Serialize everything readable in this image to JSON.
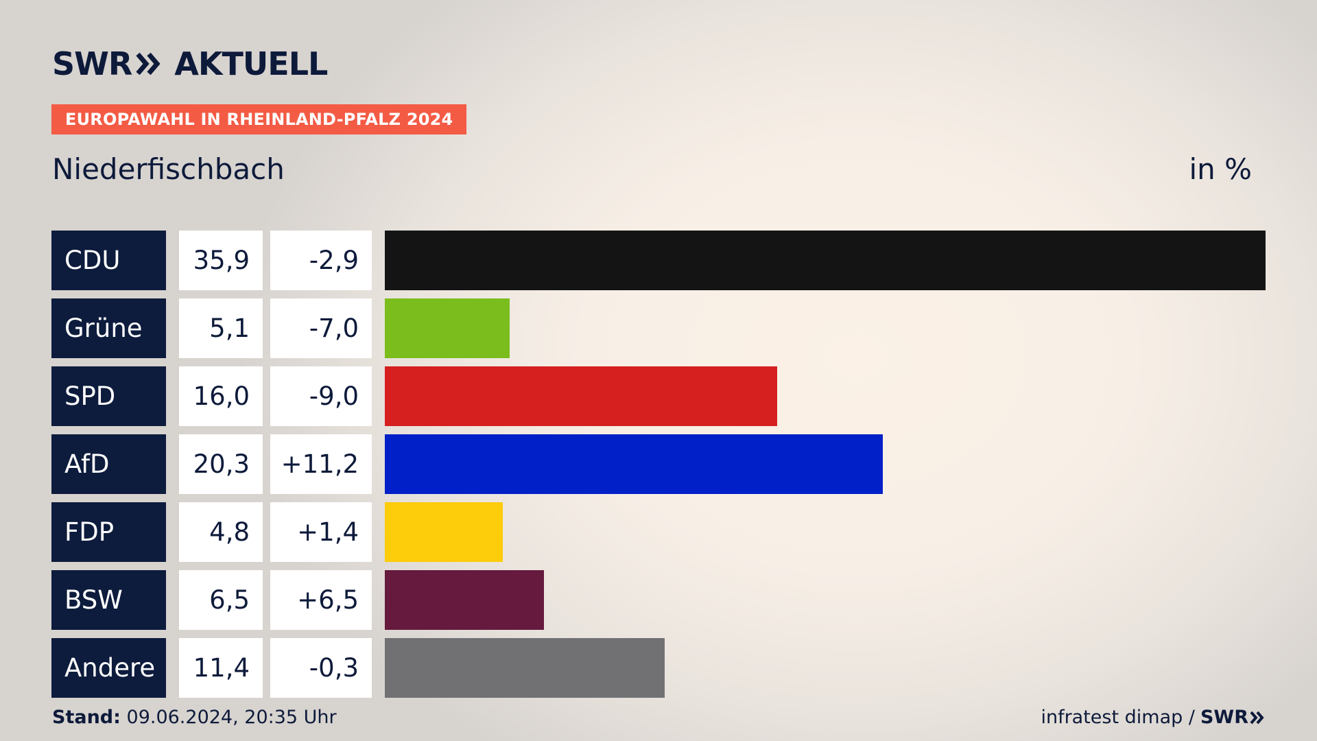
{
  "header": {
    "brand_swr": "SWR",
    "brand_aktuell": "AKTUELL",
    "badge": "EUROPAWAHL IN RHEINLAND-PFALZ 2024",
    "subtitle": "Niederfischbach",
    "unit": "in %"
  },
  "footer": {
    "stand_label": "Stand:",
    "stand_value": "09.06.2024, 20:35 Uhr",
    "source": "infratest dimap /",
    "source_brand": "SWR"
  },
  "chart_data": {
    "type": "bar",
    "orientation": "horizontal",
    "categories": [
      "CDU",
      "Grüne",
      "SPD",
      "AfD",
      "FDP",
      "BSW",
      "Andere"
    ],
    "values": [
      35.9,
      5.1,
      16.0,
      20.3,
      4.8,
      6.5,
      11.4
    ],
    "value_labels": [
      "35,9",
      "5,1",
      "16,0",
      "20,3",
      "4,8",
      "6,5",
      "11,4"
    ],
    "diff_labels": [
      "-2,9",
      "-7,0",
      "-9,0",
      "+11,2",
      "+1,4",
      "+6,5",
      "-0,3"
    ],
    "colors": [
      "#141414",
      "#7abd1d",
      "#d61f1f",
      "#0220c7",
      "#fdcc0a",
      "#651a3e",
      "#717174"
    ],
    "xlim": [
      0,
      35.9
    ],
    "grid": false
  }
}
